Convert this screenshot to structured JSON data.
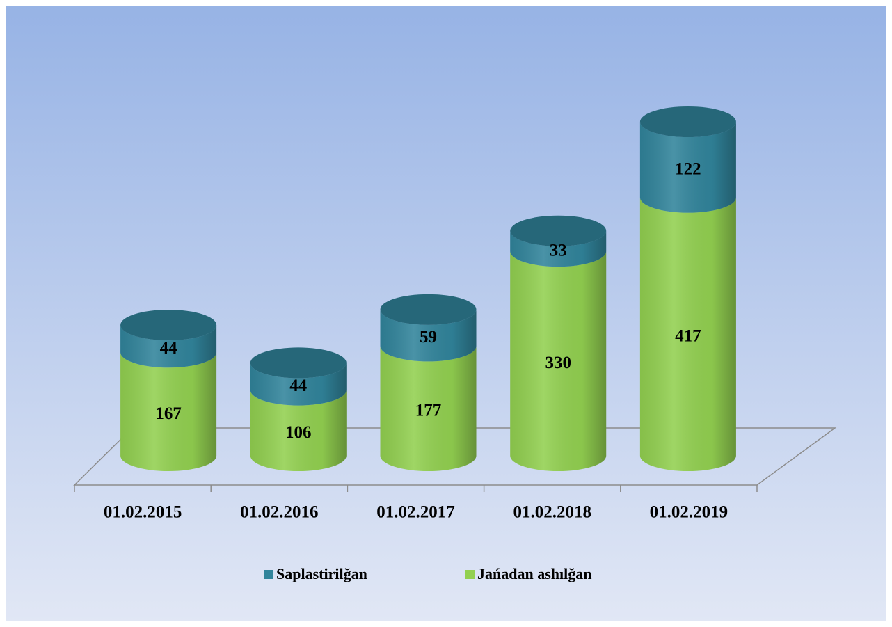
{
  "chart_data": {
    "type": "bar3d-cylinder-stacked",
    "categories": [
      "01.02.2015",
      "01.02.2016",
      "01.02.2017",
      "01.02.2018",
      "01.02.2019"
    ],
    "series": [
      {
        "name": "Saplastirilğan",
        "color": "#31849b",
        "values": [
          44,
          44,
          59,
          33,
          122
        ]
      },
      {
        "name": "Jańadan ashılğan",
        "color": "#92d050",
        "values": [
          167,
          106,
          177,
          330,
          417
        ]
      }
    ],
    "legend": "bottom"
  }
}
